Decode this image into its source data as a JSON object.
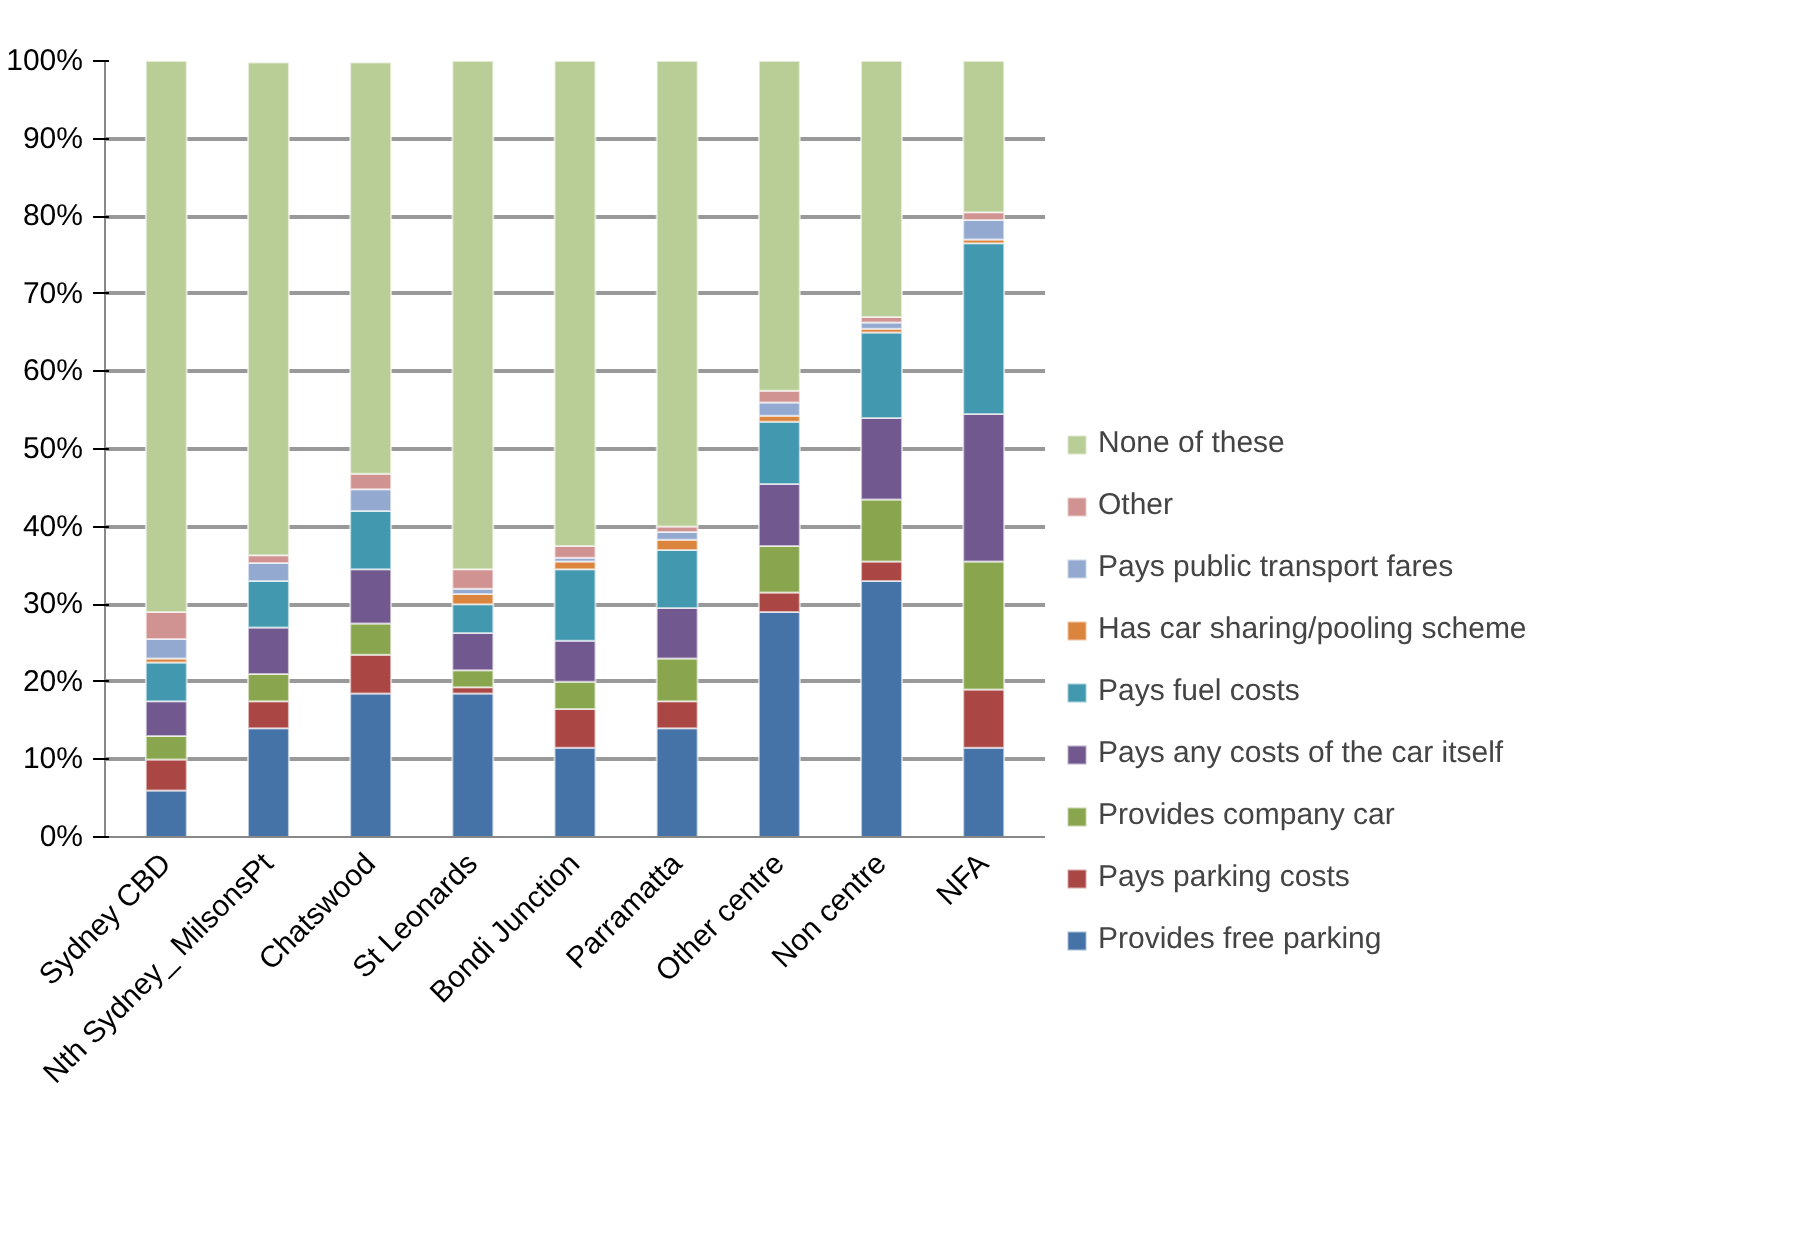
{
  "chart_data": {
    "type": "bar",
    "stacked": true,
    "categories": [
      "Sydney CBD",
      "Nth Sydney_ MilsonsPt",
      "Chatswood",
      "St Leonards",
      "Bondi Junction",
      "Parramatta",
      "Other centre",
      "Non centre",
      "NFA"
    ],
    "ylim": [
      0,
      100
    ],
    "yticks": [
      {
        "value": 0,
        "label": "0%"
      },
      {
        "value": 10,
        "label": "10%"
      },
      {
        "value": 20,
        "label": "20%"
      },
      {
        "value": 30,
        "label": "30%"
      },
      {
        "value": 40,
        "label": "40%"
      },
      {
        "value": 50,
        "label": "50%"
      },
      {
        "value": 60,
        "label": "60%"
      },
      {
        "value": 70,
        "label": "70%"
      },
      {
        "value": 80,
        "label": "80%"
      },
      {
        "value": 90,
        "label": "90%"
      },
      {
        "value": 100,
        "label": "100%"
      }
    ],
    "grid": "y",
    "legend": "right",
    "series": [
      {
        "name": "Provides free parking",
        "color": "#4572a7",
        "values": [
          6,
          14,
          18.5,
          18.5,
          11.5,
          14,
          29,
          33,
          11.5
        ]
      },
      {
        "name": "Pays parking costs",
        "color": "#aa4643",
        "values": [
          4,
          3.5,
          5,
          0.8,
          5,
          3.5,
          2.5,
          2.5,
          7.5
        ]
      },
      {
        "name": "Provides company car",
        "color": "#89a54e",
        "values": [
          3,
          3.5,
          4,
          2.2,
          3.5,
          5.5,
          6,
          8,
          16.5
        ]
      },
      {
        "name": "Pays any costs of the car itself",
        "color": "#71588f",
        "values": [
          4.5,
          6,
          7,
          4.8,
          5.3,
          6.5,
          8,
          10.5,
          19
        ]
      },
      {
        "name": "Pays fuel costs",
        "color": "#4198af",
        "values": [
          5,
          6,
          7.5,
          3.7,
          9.2,
          7.5,
          8,
          11,
          22
        ]
      },
      {
        "name": "Has car sharing/pooling scheme",
        "color": "#db843d",
        "values": [
          0.5,
          null,
          null,
          1.3,
          1,
          1.3,
          0.8,
          0.5,
          0.5
        ]
      },
      {
        "name": "Pays public transport fares",
        "color": "#93a9cf",
        "values": [
          2.5,
          2.3,
          2.8,
          0.7,
          0.5,
          1,
          1.7,
          0.8,
          2.5
        ]
      },
      {
        "name": "Other",
        "color": "#d19392",
        "values": [
          3.5,
          1,
          2,
          2.5,
          1.5,
          0.7,
          1.5,
          0.7,
          1
        ]
      },
      {
        "name": "None of these",
        "color": "#b9cd96",
        "values": [
          71,
          63.5,
          53,
          65.5,
          62.5,
          60,
          42.5,
          33,
          19.5
        ]
      }
    ]
  }
}
